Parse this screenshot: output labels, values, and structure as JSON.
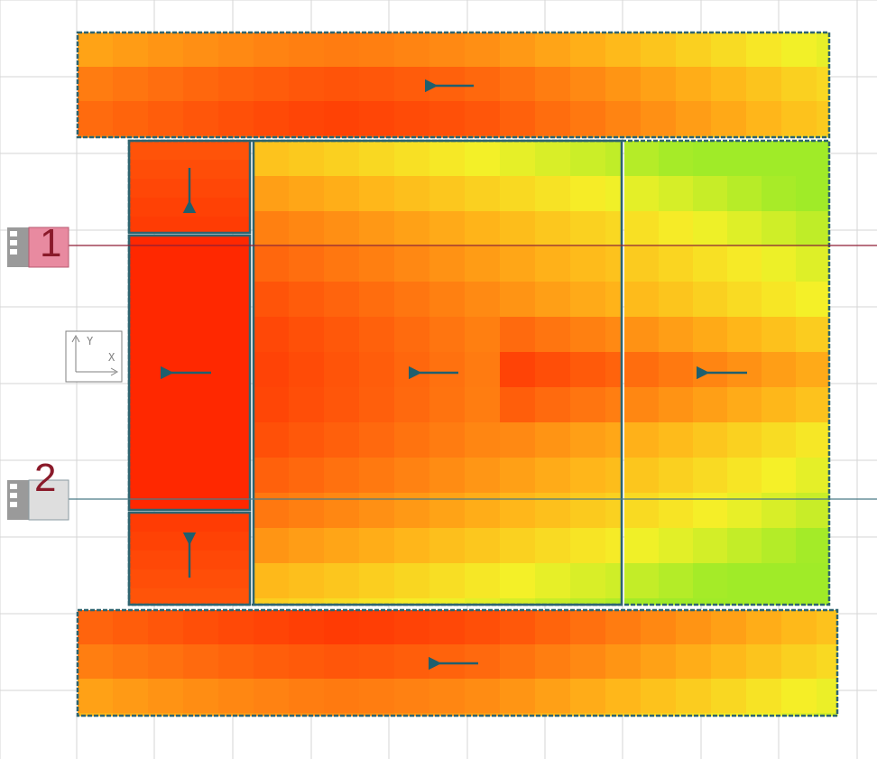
{
  "colors": {
    "background": "#ffffff",
    "grid_line": "#d6d6d6",
    "region_border": "#2e6470",
    "flow_arrow": "#1f5f6e",
    "section_line_1": "#8f1f36",
    "section_line_2": "#4a7a86",
    "label_color": "#8a1a2a",
    "marker_1_fill": "#e88aa0",
    "marker_2_fill": "#dedede",
    "axis_widget": "#808080"
  },
  "heat_colors": [
    [
      255,
      40,
      0
    ],
    [
      255,
      112,
      15
    ],
    [
      255,
      180,
      25
    ],
    [
      245,
      240,
      40
    ],
    [
      160,
      235,
      40
    ]
  ],
  "section_markers": [
    {
      "label": "1",
      "icon": "section-marker-icon",
      "line_color_key": "section_line_1",
      "fill_key": "marker_1_fill"
    },
    {
      "label": "2",
      "icon": "section-marker-icon",
      "line_color_key": "section_line_2",
      "fill_key": "marker_2_fill"
    }
  ],
  "axis_widget": {
    "icon": "coordinate-axes-icon",
    "x_label": "X",
    "y_label": "Y"
  },
  "regions": [
    {
      "id": "top-strip",
      "flow_direction": "left"
    },
    {
      "id": "upper-left-block",
      "flow_direction": "down"
    },
    {
      "id": "middle-left-block",
      "flow_direction": "left"
    },
    {
      "id": "lower-left-block",
      "flow_direction": "up"
    },
    {
      "id": "central-block",
      "flow_direction": "left"
    },
    {
      "id": "right-block",
      "flow_direction": "left"
    },
    {
      "id": "bottom-strip",
      "flow_direction": "left"
    }
  ]
}
